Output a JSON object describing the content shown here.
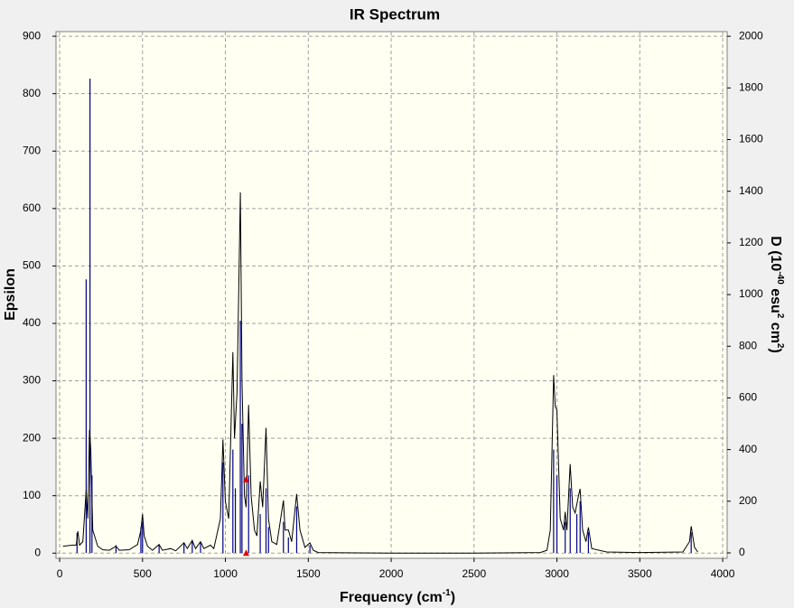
{
  "chart_data": {
    "type": "line",
    "title": "IR Spectrum",
    "x_label": [
      "Frequency (cm",
      "-1",
      ")"
    ],
    "y_label": "Epsilon",
    "y2_label": [
      "D (10",
      "-40",
      " esu",
      "2",
      " cm",
      "2",
      ")"
    ],
    "xlim": [
      -22,
      4027
    ],
    "ylim": [
      -9,
      908
    ],
    "y2lim": [
      -21,
      2018
    ],
    "xticks": [
      0,
      500,
      1000,
      1500,
      2000,
      2500,
      3000,
      3500,
      4000
    ],
    "yticks": [
      0,
      100,
      200,
      300,
      400,
      500,
      600,
      700,
      800,
      900
    ],
    "y2ticks": [
      0,
      200,
      400,
      600,
      800,
      1000,
      1200,
      1400,
      1600,
      1800,
      2000
    ],
    "grid": true,
    "series": [
      {
        "kind": "line",
        "color": "#000000",
        "x": [
          20,
          80,
          100,
          110,
          120,
          140,
          160,
          170,
          180,
          188,
          200,
          230,
          260,
          300,
          340,
          360,
          420,
          470,
          490,
          500,
          510,
          530,
          560,
          600,
          620,
          670,
          700,
          750,
          770,
          800,
          820,
          850,
          870,
          910,
          930,
          970,
          985,
          1000,
          1020,
          1045,
          1055,
          1070,
          1090,
          1100,
          1115,
          1125,
          1140,
          1155,
          1175,
          1190,
          1210,
          1225,
          1245,
          1260,
          1280,
          1310,
          1350,
          1360,
          1380,
          1400,
          1430,
          1450,
          1480,
          1510,
          1530,
          1560,
          2000,
          2500,
          2900,
          2940,
          2960,
          2980,
          2990,
          3000,
          3020,
          3040,
          3050,
          3060,
          3080,
          3095,
          3110,
          3130,
          3140,
          3155,
          3175,
          3190,
          3210,
          3300,
          3500,
          3760,
          3800,
          3810,
          3830,
          3850
        ],
        "values": [
          12,
          14,
          14,
          38,
          14,
          20,
          110,
          60,
          215,
          180,
          40,
          12,
          6,
          5,
          12,
          5,
          6,
          15,
          40,
          68,
          30,
          12,
          5,
          15,
          5,
          8,
          4,
          18,
          8,
          22,
          8,
          20,
          8,
          14,
          8,
          60,
          198,
          90,
          60,
          350,
          200,
          280,
          628,
          300,
          100,
          80,
          258,
          100,
          40,
          30,
          125,
          80,
          218,
          60,
          20,
          15,
          92,
          40,
          40,
          20,
          103,
          40,
          10,
          18,
          5,
          1,
          0,
          0,
          1,
          5,
          40,
          310,
          255,
          250,
          60,
          40,
          72,
          40,
          155,
          80,
          70,
          100,
          112,
          40,
          20,
          45,
          8,
          2,
          1,
          2,
          20,
          47,
          10,
          2
        ]
      },
      {
        "kind": "stick",
        "axis": "y2",
        "color": "#00008b",
        "x": [
          105,
          160,
          183,
          195,
          340,
          490,
          500,
          600,
          750,
          800,
          850,
          985,
          1045,
          1060,
          1090,
          1100,
          1140,
          1210,
          1245,
          1260,
          1350,
          1380,
          1430,
          1510,
          2980,
          3000,
          3050,
          3080,
          3120,
          3140,
          3190,
          3810
        ],
        "values": [
          77,
          1059,
          1836,
          300,
          30,
          100,
          120,
          30,
          40,
          50,
          40,
          350,
          400,
          250,
          899,
          500,
          300,
          150,
          250,
          100,
          120,
          60,
          180,
          30,
          400,
          300,
          120,
          250,
          150,
          200,
          80,
          80
        ]
      }
    ],
    "selection": {
      "x": 1125,
      "y": 128,
      "color": "#e00000"
    }
  }
}
